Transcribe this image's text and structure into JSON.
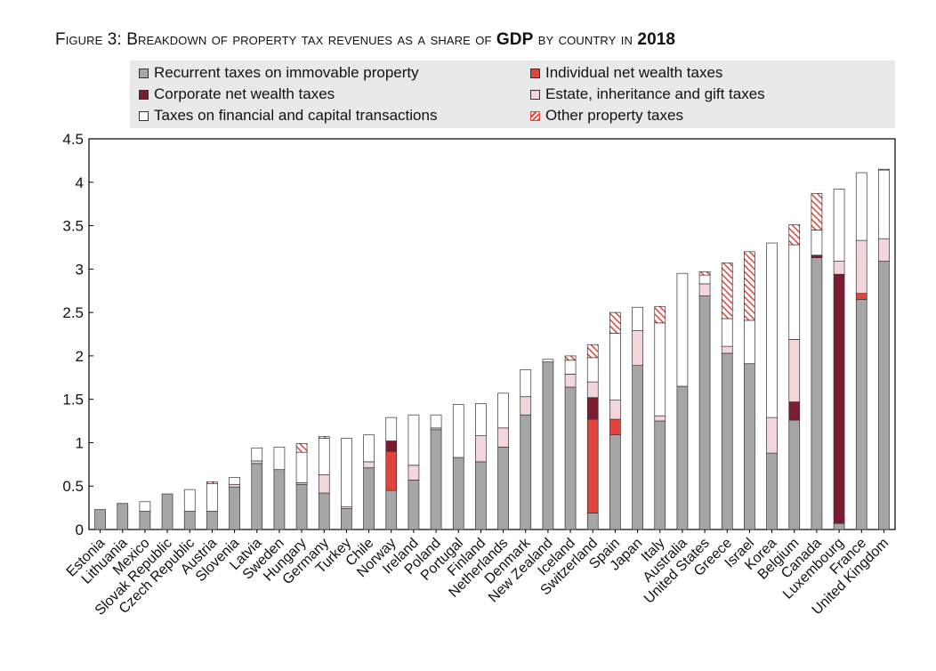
{
  "figure": {
    "label": "Figure 3:",
    "title_pre": "Breakdown of property tax revenues as a share of",
    "title_gdp": "GDP",
    "title_mid": "by country in",
    "title_year": "2018"
  },
  "chart_data": {
    "type": "bar",
    "stacked": true,
    "ylim": [
      0,
      4.5
    ],
    "yticks": [
      "0",
      "0.5",
      "1",
      "1.5",
      "2",
      "2.5",
      "3",
      "3.5",
      "4",
      "4.5"
    ],
    "grid": false,
    "legend_position": "top",
    "categories": [
      "Estonia",
      "Lithuania",
      "Mexico",
      "Slovak Republic",
      "Czech Republic",
      "Austria",
      "Slovenia",
      "Latvia",
      "Sweden",
      "Hungary",
      "Germany",
      "Turkey",
      "Chile",
      "Norway",
      "Ireland",
      "Poland",
      "Portugal",
      "Finland",
      "Netherlands",
      "Denmark",
      "New Zealand",
      "Iceland",
      "Switzerland",
      "Spain",
      "Japan",
      "Italy",
      "Australia",
      "United States",
      "Greece",
      "Israel",
      "Korea",
      "Belgium",
      "Canada",
      "Luxembourg",
      "France",
      "United Kingdom"
    ],
    "series": [
      {
        "name": "Recurrent taxes on immovable property",
        "color": "#a6a6a6",
        "values": [
          0.23,
          0.3,
          0.21,
          0.41,
          0.21,
          0.21,
          0.49,
          0.76,
          0.69,
          0.52,
          0.42,
          0.24,
          0.71,
          0.45,
          0.57,
          1.15,
          0.83,
          0.78,
          0.95,
          1.32,
          1.93,
          1.64,
          0.19,
          1.09,
          1.89,
          1.25,
          1.65,
          2.69,
          2.03,
          1.91,
          0.88,
          1.26,
          3.13,
          0.07,
          2.65,
          3.09
        ]
      },
      {
        "name": "Individual net wealth taxes",
        "color": "#e0453c",
        "values": [
          0,
          0,
          0,
          0,
          0,
          0,
          0,
          0,
          0,
          0,
          0,
          0,
          0,
          0.45,
          0,
          0,
          0,
          0,
          0,
          0,
          0,
          0,
          1.08,
          0.18,
          0,
          0,
          0,
          0,
          0,
          0,
          0,
          0,
          0,
          0,
          0.07,
          0
        ]
      },
      {
        "name": "Corporate net wealth taxes",
        "color": "#7b1c30",
        "values": [
          0,
          0,
          0,
          0,
          0,
          0,
          0,
          0,
          0,
          0,
          0,
          0,
          0,
          0.12,
          0,
          0,
          0,
          0,
          0,
          0,
          0,
          0,
          0.25,
          0,
          0,
          0,
          0,
          0,
          0,
          0,
          0,
          0.21,
          0.03,
          2.87,
          0,
          0
        ]
      },
      {
        "name": "Estate, inheritance and gift taxes",
        "color": "#f2d6da",
        "values": [
          0,
          0,
          0,
          0,
          0,
          0,
          0.03,
          0.03,
          0,
          0.02,
          0.21,
          0.02,
          0.07,
          0,
          0.17,
          0.02,
          0,
          0.3,
          0.22,
          0.21,
          0,
          0.15,
          0.18,
          0.22,
          0.4,
          0.06,
          0,
          0.14,
          0.08,
          0,
          0.41,
          0.72,
          0,
          0.15,
          0.61,
          0.26
        ]
      },
      {
        "name": "Taxes on financial and capital transactions",
        "color": "#ffffff",
        "values": [
          0,
          0,
          0.11,
          0,
          0.25,
          0.32,
          0.08,
          0.15,
          0.26,
          0.35,
          0.42,
          0.79,
          0.31,
          0.27,
          0.58,
          0.15,
          0.61,
          0.37,
          0.4,
          0.31,
          0.03,
          0.16,
          0.28,
          0.77,
          0.27,
          1.07,
          1.3,
          0.1,
          0.32,
          0.5,
          2.01,
          1.09,
          0.29,
          0.83,
          0.78,
          0.79
        ]
      },
      {
        "name": "Other property taxes",
        "color": "#e0453c",
        "pattern": "hatched",
        "values": [
          0,
          0,
          0,
          0,
          0,
          0.02,
          0,
          0,
          0,
          0.1,
          0.02,
          0,
          0,
          0,
          0,
          0,
          0,
          0,
          0,
          0,
          0,
          0.05,
          0.15,
          0.24,
          0,
          0.19,
          0,
          0.04,
          0.64,
          0.79,
          0,
          0.23,
          0.42,
          0,
          0,
          0.01
        ]
      }
    ]
  }
}
